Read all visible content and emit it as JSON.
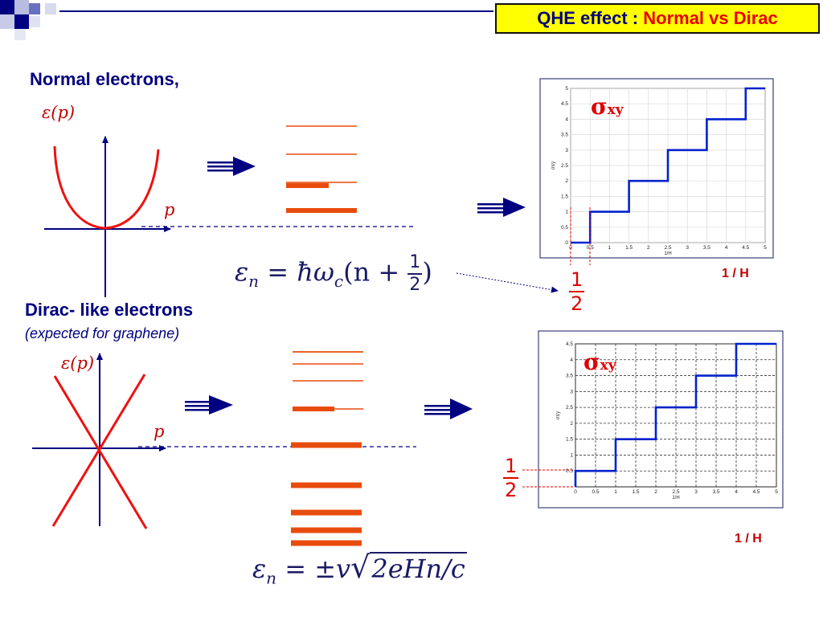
{
  "title": {
    "prefix": "QHE effect : ",
    "highlight": "Normal vs Dirac"
  },
  "normal": {
    "heading": "Normal electrons,",
    "energy_label": "ε(p)",
    "momentum_label": "p",
    "formula": {
      "lhs": "ε",
      "lhs_sub": "n",
      "eq": " = ",
      "rhs": "ħω",
      "rhs_sub": "c",
      "paren_open": "(n + ",
      "paren_close": ")"
    },
    "half_num": "1",
    "half_den": "2",
    "axis_note": "1 / H",
    "sigma": "σ",
    "sigma_sub": "xy"
  },
  "dirac": {
    "heading": "Dirac- like electrons",
    "subheading": "(expected for graphene)",
    "energy_label": "ε(p)",
    "momentum_label": "p",
    "formula": {
      "lhs": "ε",
      "lhs_sub": "n",
      "eq": " = ±",
      "v": "v",
      "radicand": "2eHn/c"
    },
    "axis_note": "1 / H",
    "sigma": "σ",
    "sigma_sub": "xy"
  },
  "colors": {
    "navy": "#000080",
    "red": "#e00000",
    "orange": "#e84c0c",
    "plot_blue": "#0022cc"
  },
  "chart_data": [
    {
      "type": "line",
      "title": "",
      "xlabel": "1/H",
      "ylabel": "σxy",
      "xlim": [
        0,
        5
      ],
      "ylim": [
        0,
        5
      ],
      "xticks": [
        "0",
        "0.5",
        "1",
        "1.5",
        "2",
        "2.5",
        "3",
        "3.5",
        "4",
        "4.5",
        "5"
      ],
      "yticks": [
        "0",
        "0.5",
        "1",
        "1.5",
        "2",
        "2.5",
        "3",
        "3.5",
        "4",
        "4.5",
        "5"
      ],
      "grid": true,
      "series": [
        {
          "x": [
            0,
            0.5,
            0.5,
            1.5,
            1.5,
            2.5,
            2.5,
            3.5,
            3.5,
            4.5,
            4.5,
            5
          ],
          "y": [
            0,
            0,
            1,
            1,
            2,
            2,
            3,
            3,
            4,
            4,
            5,
            5
          ]
        }
      ]
    },
    {
      "type": "line",
      "title": "",
      "xlabel": "1/H",
      "ylabel": "σxy",
      "xlim": [
        0,
        5
      ],
      "ylim": [
        0,
        4.5
      ],
      "xticks": [
        "0",
        "0.5",
        "1",
        "1.5",
        "2",
        "2.5",
        "3",
        "3.5",
        "4",
        "4.5",
        "5"
      ],
      "yticks": [
        "0.5",
        "1",
        "1.5",
        "2",
        "2.5",
        "3",
        "3.5",
        "4",
        "4.5"
      ],
      "grid": true,
      "series": [
        {
          "x": [
            0,
            0,
            1,
            1,
            2,
            2,
            3,
            3,
            4,
            4,
            5
          ],
          "y": [
            0,
            0.5,
            0.5,
            1.5,
            1.5,
            2.5,
            2.5,
            3.5,
            3.5,
            4.5,
            4.5
          ]
        }
      ]
    }
  ]
}
